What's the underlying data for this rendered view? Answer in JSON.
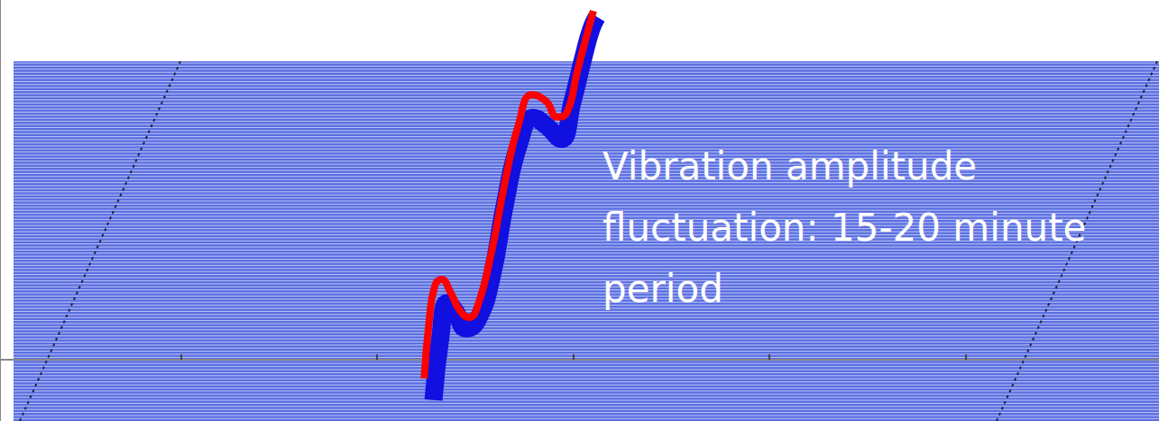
{
  "chart_data": {
    "type": "line",
    "annotation": "Vibration amplitude fluctuation: 15-20 minute period",
    "series": [
      {
        "color": "#1010e0",
        "x": [
          37.4,
          38.0,
          38.6,
          39.3,
          40.2,
          41.2,
          42.4,
          43.6,
          44.8,
          46.0,
          47.2,
          48.4,
          49.4,
          50.3,
          51.0,
          51.5
        ],
        "values": [
          5,
          20,
          28,
          26,
          22,
          24,
          34,
          52,
          66,
          72,
          70,
          67,
          76,
          86,
          93,
          96
        ]
      },
      {
        "color": "#ff0000",
        "x": [
          36.6,
          37.0,
          37.5,
          38.1,
          38.9,
          39.7,
          40.5,
          41.2,
          42.4,
          43.6,
          44.7,
          45.9,
          47.1,
          48.1,
          48.9,
          49.8,
          50.6,
          51.2
        ],
        "values": [
          10.1,
          22.9,
          31.9,
          33.6,
          30.4,
          26.1,
          24.6,
          27.2,
          40.0,
          57.2,
          70.0,
          77.5,
          76.0,
          72.2,
          73.2,
          82.9,
          91.4,
          97.4
        ]
      }
    ],
    "xlim": [
      0,
      100
    ],
    "xticks": [
      15.6,
      32.5,
      49.5,
      66.4,
      83.3
    ],
    "ylim": [
      0,
      100
    ],
    "yticks": [
      0,
      100
    ],
    "tick_labels": false,
    "grid": false
  }
}
